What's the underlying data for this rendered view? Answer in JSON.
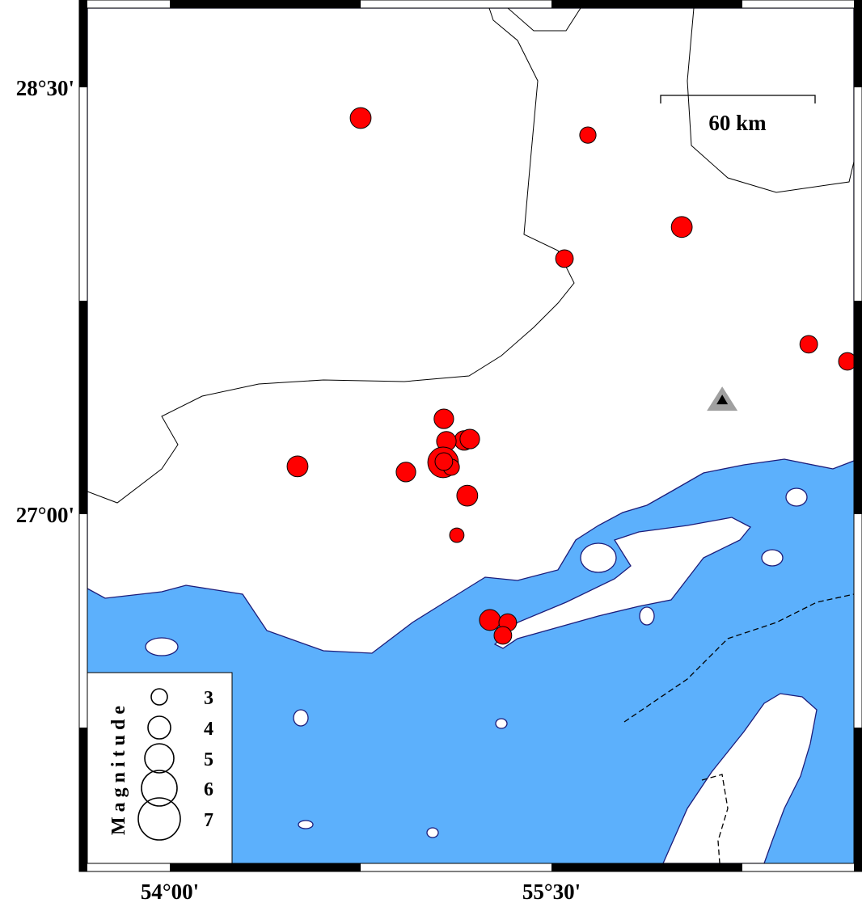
{
  "map": {
    "colors": {
      "sea": "#5cb0fc",
      "land": "#ffffff",
      "coast": "#1c1c7a",
      "event": "#ff0000",
      "station_outer": "#a0a0a0",
      "station_inner": "#000000"
    },
    "region": {
      "lon_min": 53.676,
      "lon_max": 56.689,
      "lat_min": 25.773,
      "lat_max": 28.778
    },
    "x_tick_labels": [
      {
        "lon": 54.0,
        "label": "54°00'"
      },
      {
        "lon": 55.5,
        "label": "55°30'"
      }
    ],
    "y_tick_labels": [
      {
        "lat": 28.5,
        "label": "28°30'"
      },
      {
        "lat": 27.0,
        "label": "27°00'"
      }
    ],
    "scale_bar": {
      "label": "60 km",
      "length_km": 60
    },
    "events": [
      {
        "lon": 54.75,
        "lat": 28.392,
        "mag": 3.6
      },
      {
        "lon": 55.643,
        "lat": 28.332,
        "mag": 2.9
      },
      {
        "lon": 56.012,
        "lat": 28.009,
        "mag": 3.6
      },
      {
        "lon": 55.551,
        "lat": 27.898,
        "mag": 3.1
      },
      {
        "lon": 56.511,
        "lat": 27.597,
        "mag": 3.1
      },
      {
        "lon": 56.663,
        "lat": 27.537,
        "mag": 3.1
      },
      {
        "lon": 55.077,
        "lat": 27.335,
        "mag": 3.4
      },
      {
        "lon": 55.157,
        "lat": 27.259,
        "mag": 3.4
      },
      {
        "lon": 55.179,
        "lat": 27.264,
        "mag": 3.4
      },
      {
        "lon": 55.087,
        "lat": 27.256,
        "mag": 3.4
      },
      {
        "lon": 55.074,
        "lat": 27.182,
        "mag": 5.1
      },
      {
        "lon": 55.106,
        "lat": 27.165,
        "mag": 2.9
      },
      {
        "lon": 55.077,
        "lat": 27.185,
        "mag": 3.1
      },
      {
        "lon": 54.502,
        "lat": 27.168,
        "mag": 3.6
      },
      {
        "lon": 54.928,
        "lat": 27.148,
        "mag": 3.4
      },
      {
        "lon": 55.169,
        "lat": 27.065,
        "mag": 3.6
      },
      {
        "lon": 55.128,
        "lat": 26.926,
        "mag": 2.6
      },
      {
        "lon": 55.258,
        "lat": 26.628,
        "mag": 3.6
      },
      {
        "lon": 55.328,
        "lat": 26.619,
        "mag": 3.1
      },
      {
        "lon": 55.309,
        "lat": 26.574,
        "mag": 3.1
      }
    ],
    "station": {
      "lon": 56.171,
      "lat": 27.403,
      "icon": "triangle-icon"
    },
    "legend": {
      "title": "Magnitude",
      "items": [
        {
          "mag": 3,
          "label": "3"
        },
        {
          "mag": 4,
          "label": "4"
        },
        {
          "mag": 5,
          "label": "5"
        },
        {
          "mag": 6,
          "label": "6"
        },
        {
          "mag": 7,
          "label": "7"
        }
      ]
    }
  }
}
